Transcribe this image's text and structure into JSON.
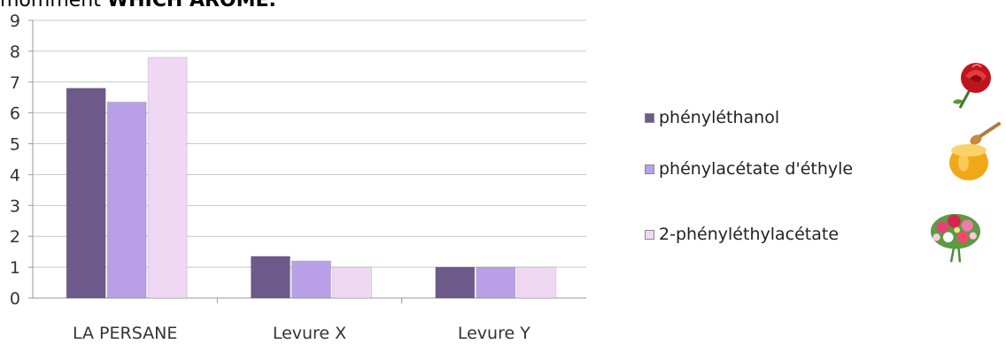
{
  "header": {
    "text_plain": "momment ",
    "text_bold": "WHICH AROME."
  },
  "colors": {
    "series_1": "#6e5a8a",
    "series_2": "#b9a0e6",
    "series_3": "#f0d8f4",
    "gridline": "#c8c8c8",
    "axis": "#9a9a9a"
  },
  "icons": {
    "picture_1": "rose-icon",
    "picture_2": "honey-jar-icon",
    "picture_3": "flower-bouquet-icon"
  },
  "chart_data": {
    "type": "bar",
    "categories": [
      "LA PERSANE",
      "Levure X",
      "Levure Y"
    ],
    "series": [
      {
        "name": "phényléthanol",
        "values": [
          6.8,
          1.35,
          1.0
        ]
      },
      {
        "name": "phénylacétate d'éthyle",
        "values": [
          6.35,
          1.2,
          1.0
        ]
      },
      {
        "name": "2-phényléthylacétate",
        "values": [
          7.8,
          1.0,
          1.0
        ]
      }
    ],
    "yticks": [
      "0",
      "1",
      "2",
      "3",
      "4",
      "5",
      "6",
      "7",
      "8",
      "9"
    ],
    "ylim": [
      0,
      9
    ],
    "grid": true,
    "legend_position": "right",
    "title": "",
    "xlabel": "",
    "ylabel": ""
  }
}
